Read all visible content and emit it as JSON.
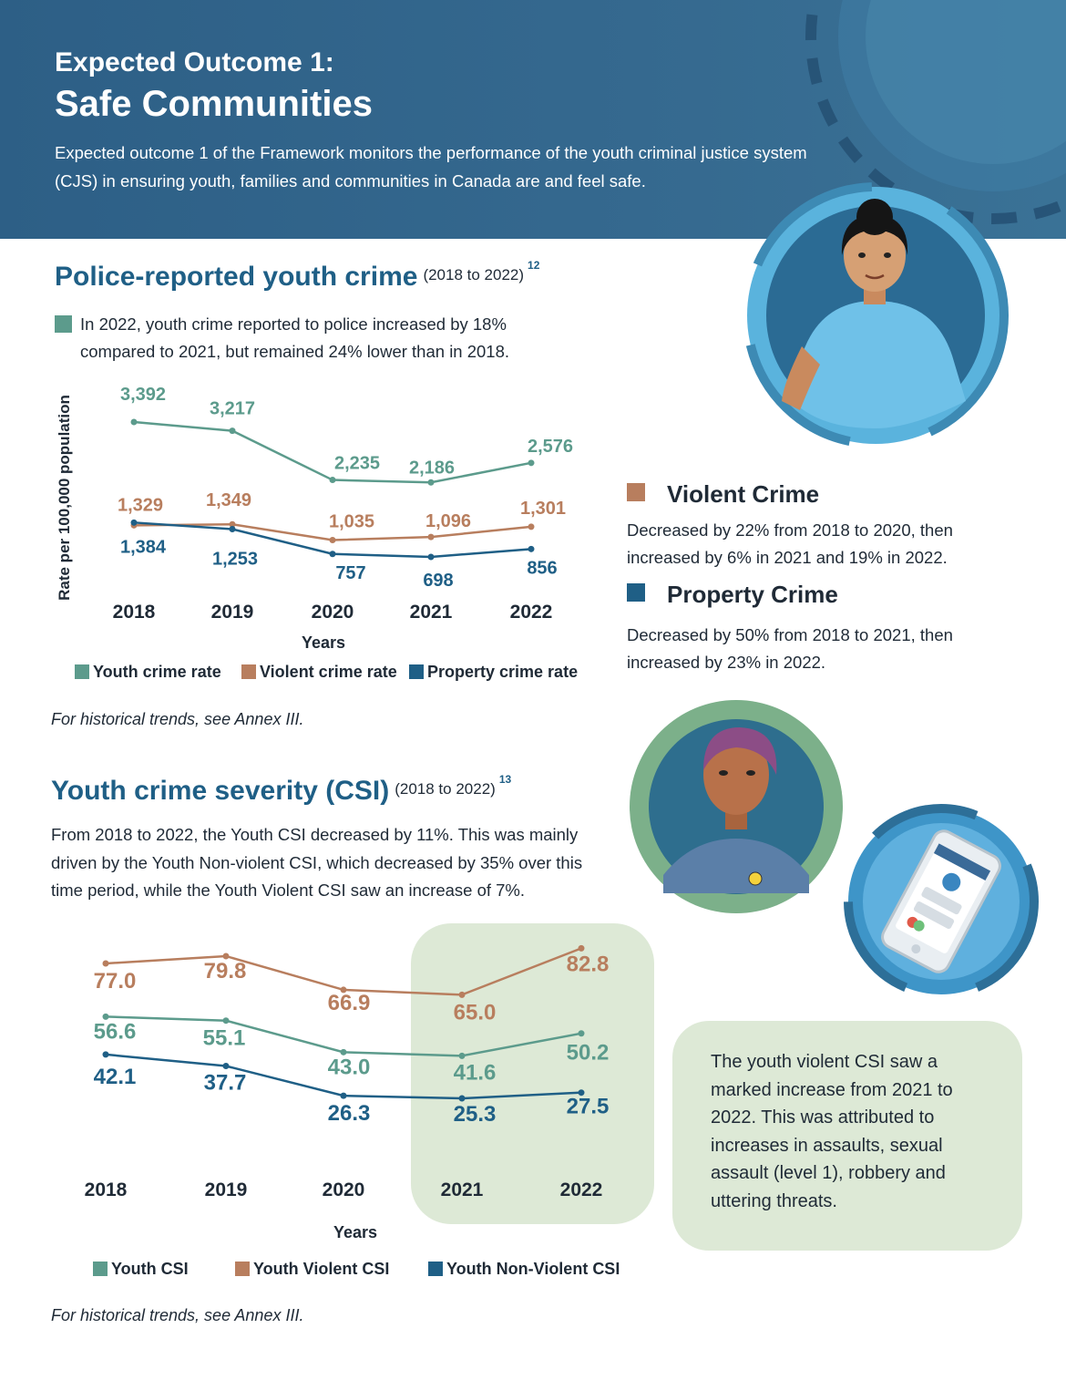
{
  "header": {
    "kicker": "Expected Outcome 1:",
    "title": "Safe Communities",
    "intro": "Expected outcome 1 of the Framework monitors the performance of the youth criminal justice system (CJS) in ensuring youth, families and communities in Canada are and feel safe."
  },
  "section1": {
    "title": "Police-reported youth crime",
    "range": "(2018 to 2022)",
    "note": "12",
    "bullet": "In 2022, youth crime reported to police increased by 18% compared to 2021, but remained 24% lower than in 2018.",
    "footnote": "For historical trends, see Annex III."
  },
  "section2": {
    "title": "Youth crime severity (CSI)",
    "range": "(2018 to 2022)",
    "note": "13",
    "body": "From 2018 to 2022, the Youth CSI decreased by 11%. This was mainly driven by the Youth Non-violent CSI, which decreased by 35% over this time period, while the Youth Violent CSI saw an increase of 7%.",
    "footnote": "For historical trends, see Annex III."
  },
  "sidebar": {
    "violent_title": "Violent Crime",
    "violent_body": "Decreased by 22% from 2018 to 2020, then increased by 6% in 2021 and 19% in 2022.",
    "property_title": "Property Crime",
    "property_body": "Decreased by 50% from 2018 to 2021, then increased by 23% in 2022."
  },
  "callout": {
    "text": "The youth violent CSI saw a marked increase from 2021 to 2022. This was attributed to increases in assaults, sexual assault (level 1), robbery and uttering threats."
  },
  "colors": {
    "teal": "#5c9b8c",
    "brown": "#b87e5e",
    "blue": "#1f5f86",
    "header": "#2d5f86",
    "highlight": "#dde9d6"
  },
  "chart_data": [
    {
      "type": "line",
      "title": "",
      "x": [
        "2018",
        "2019",
        "2020",
        "2021",
        "2022"
      ],
      "xlabel": "Years",
      "ylabel": "Rate per 100,000 population",
      "series": [
        {
          "name": "Youth crime rate",
          "values": [
            3392,
            3217,
            2235,
            2186,
            2576
          ],
          "labels": [
            "3,392",
            "3,217",
            "2,235",
            "2,186",
            "2,576"
          ],
          "color": "#5c9b8c"
        },
        {
          "name": "Violent crime rate",
          "values": [
            1329,
            1349,
            1035,
            1096,
            1301
          ],
          "labels": [
            "1,329",
            "1,349",
            "1,035",
            "1,096",
            "1,301"
          ],
          "color": "#b87e5e"
        },
        {
          "name": "Property crime rate",
          "values": [
            1384,
            1253,
            757,
            698,
            856
          ],
          "labels": [
            "1,384",
            "1,253",
            "757",
            "698",
            "856"
          ],
          "color": "#1f5f86"
        }
      ],
      "legend": "bottom",
      "grid": false
    },
    {
      "type": "line",
      "title": "",
      "x": [
        "2018",
        "2019",
        "2020",
        "2021",
        "2022"
      ],
      "xlabel": "Years",
      "ylabel": "",
      "series": [
        {
          "name": "Youth CSI",
          "values": [
            56.6,
            55.1,
            43.0,
            41.6,
            50.2
          ],
          "labels": [
            "56.6",
            "55.1",
            "43.0",
            "41.6",
            "50.2"
          ],
          "color": "#5c9b8c"
        },
        {
          "name": "Youth Violent CSI",
          "values": [
            77.0,
            79.8,
            66.9,
            65.0,
            82.8
          ],
          "labels": [
            "77.0",
            "79.8",
            "66.9",
            "65.0",
            "82.8"
          ],
          "color": "#b87e5e"
        },
        {
          "name": "Youth Non-Violent CSI",
          "values": [
            42.1,
            37.7,
            26.3,
            25.3,
            27.5
          ],
          "labels": [
            "42.1",
            "37.7",
            "26.3",
            "25.3",
            "27.5"
          ],
          "color": "#1f5f86"
        }
      ],
      "highlight": [
        "2021",
        "2022"
      ],
      "legend": "bottom",
      "grid": false
    }
  ]
}
